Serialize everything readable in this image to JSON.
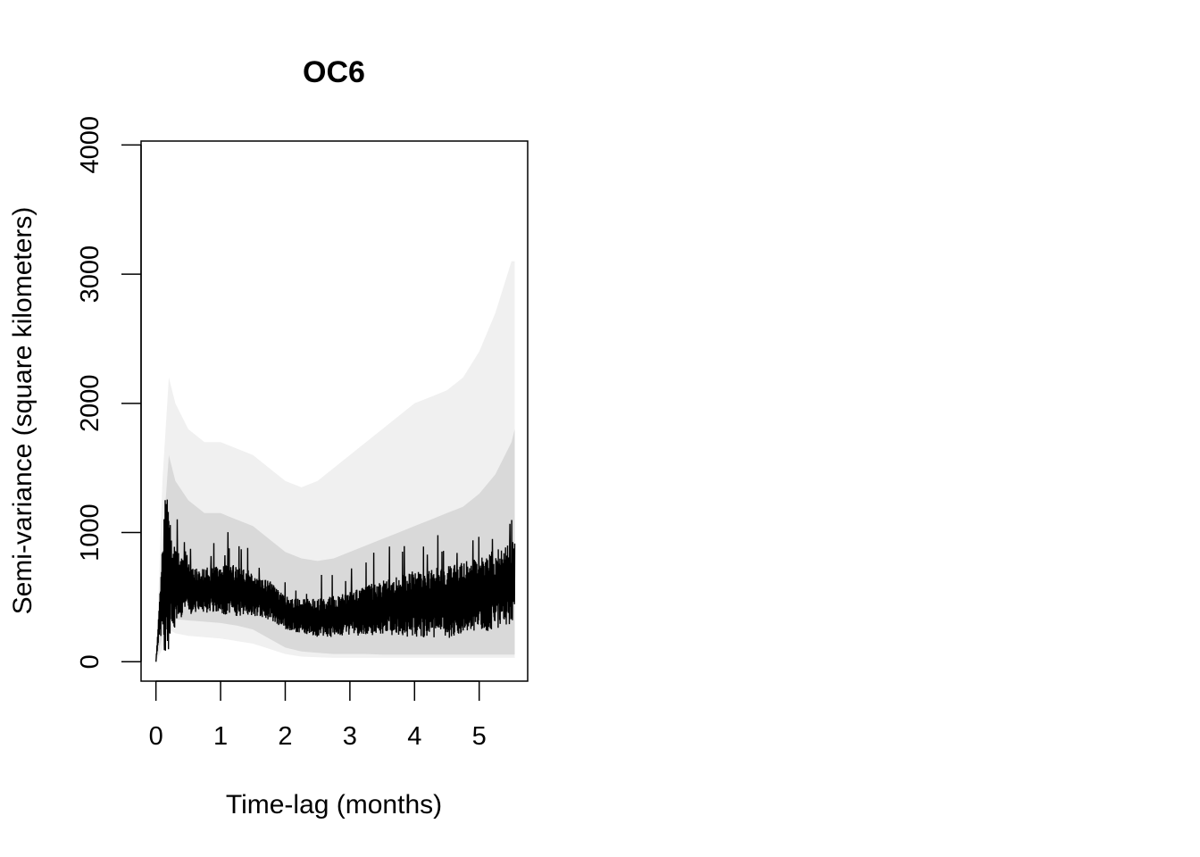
{
  "chart_data": {
    "type": "line",
    "title": "OC6",
    "xlabel": "Time-lag (months)",
    "ylabel": "Semi-variance (square kilometers)",
    "xlim": [
      -0.23,
      5.75
    ],
    "ylim": [
      -150,
      4030
    ],
    "x_ticks": [
      0,
      1,
      2,
      3,
      4,
      5
    ],
    "y_ticks": [
      0,
      1000,
      2000,
      3000,
      4000
    ],
    "grid": false,
    "legend": "none",
    "colors": {
      "line": "#000000",
      "envelope_inner": "#d9d9d9",
      "envelope_outer": "#f0f0f0",
      "axis": "#000000"
    },
    "series": [
      {
        "role": "semi-variance",
        "x": [
          0,
          0.05,
          0.1,
          0.15,
          0.2,
          0.25,
          0.3,
          0.35,
          0.4,
          0.45,
          0.5,
          0.6,
          0.7,
          0.8,
          0.9,
          1.0,
          1.1,
          1.2,
          1.3,
          1.4,
          1.5,
          1.6,
          1.7,
          1.8,
          1.9,
          2.0,
          2.1,
          2.2,
          2.3,
          2.4,
          2.5,
          2.6,
          2.7,
          2.8,
          2.9,
          3.0,
          3.1,
          3.2,
          3.3,
          3.4,
          3.5,
          3.6,
          3.7,
          3.8,
          3.9,
          4.0,
          4.1,
          4.2,
          4.3,
          4.4,
          4.5,
          4.6,
          4.7,
          4.8,
          4.9,
          5.0,
          5.1,
          5.2,
          5.3,
          5.4,
          5.5,
          5.55
        ],
        "y": [
          0,
          300,
          550,
          640,
          620,
          600,
          580,
          570,
          560,
          560,
          560,
          555,
          555,
          555,
          560,
          560,
          560,
          550,
          545,
          540,
          520,
          510,
          490,
          460,
          420,
          380,
          360,
          350,
          345,
          340,
          340,
          345,
          350,
          350,
          360,
          370,
          380,
          390,
          400,
          410,
          420,
          430,
          430,
          440,
          440,
          450,
          450,
          455,
          455,
          460,
          460,
          470,
          480,
          490,
          500,
          510,
          530,
          550,
          570,
          590,
          620,
          640
        ],
        "fluct": [
          0,
          120,
          350,
          700,
          550,
          400,
          300,
          280,
          250,
          220,
          200,
          180,
          170,
          180,
          190,
          200,
          220,
          200,
          190,
          180,
          170,
          160,
          160,
          150,
          140,
          130,
          130,
          140,
          140,
          150,
          150,
          150,
          160,
          160,
          170,
          170,
          180,
          190,
          200,
          200,
          210,
          220,
          230,
          240,
          250,
          260,
          260,
          270,
          270,
          280,
          280,
          280,
          280,
          290,
          290,
          300,
          300,
          310,
          310,
          320,
          320,
          320
        ]
      },
      {
        "role": "confidence-band-95",
        "x": [
          0,
          0.1,
          0.2,
          0.3,
          0.5,
          0.75,
          1.0,
          1.25,
          1.5,
          1.75,
          2.0,
          2.25,
          2.5,
          2.75,
          3.0,
          3.25,
          3.5,
          3.75,
          4.0,
          4.25,
          4.5,
          4.75,
          5.0,
          5.25,
          5.5,
          5.55
        ],
        "lower": [
          0,
          200,
          380,
          330,
          320,
          310,
          300,
          280,
          250,
          180,
          110,
          80,
          70,
          60,
          60,
          60,
          55,
          55,
          55,
          55,
          55,
          55,
          55,
          55,
          55,
          55
        ],
        "upper": [
          0,
          900,
          1600,
          1400,
          1250,
          1150,
          1150,
          1100,
          1050,
          950,
          850,
          800,
          780,
          800,
          850,
          900,
          950,
          1000,
          1050,
          1100,
          1150,
          1200,
          1300,
          1450,
          1700,
          1800
        ]
      },
      {
        "role": "confidence-band-outer",
        "x": [
          0,
          0.1,
          0.2,
          0.3,
          0.5,
          0.75,
          1.0,
          1.25,
          1.5,
          1.75,
          2.0,
          2.25,
          2.5,
          2.75,
          3.0,
          3.25,
          3.5,
          3.75,
          4.0,
          4.25,
          4.5,
          4.75,
          5.0,
          5.25,
          5.5,
          5.55
        ],
        "lower": [
          0,
          100,
          250,
          220,
          200,
          190,
          180,
          160,
          140,
          100,
          60,
          40,
          35,
          30,
          30,
          30,
          30,
          30,
          30,
          30,
          30,
          30,
          30,
          30,
          30,
          30
        ],
        "upper": [
          0,
          1400,
          2200,
          2000,
          1800,
          1700,
          1700,
          1650,
          1600,
          1500,
          1400,
          1350,
          1400,
          1500,
          1600,
          1700,
          1800,
          1900,
          2000,
          2050,
          2100,
          2200,
          2400,
          2700,
          3100,
          3100
        ]
      }
    ]
  }
}
